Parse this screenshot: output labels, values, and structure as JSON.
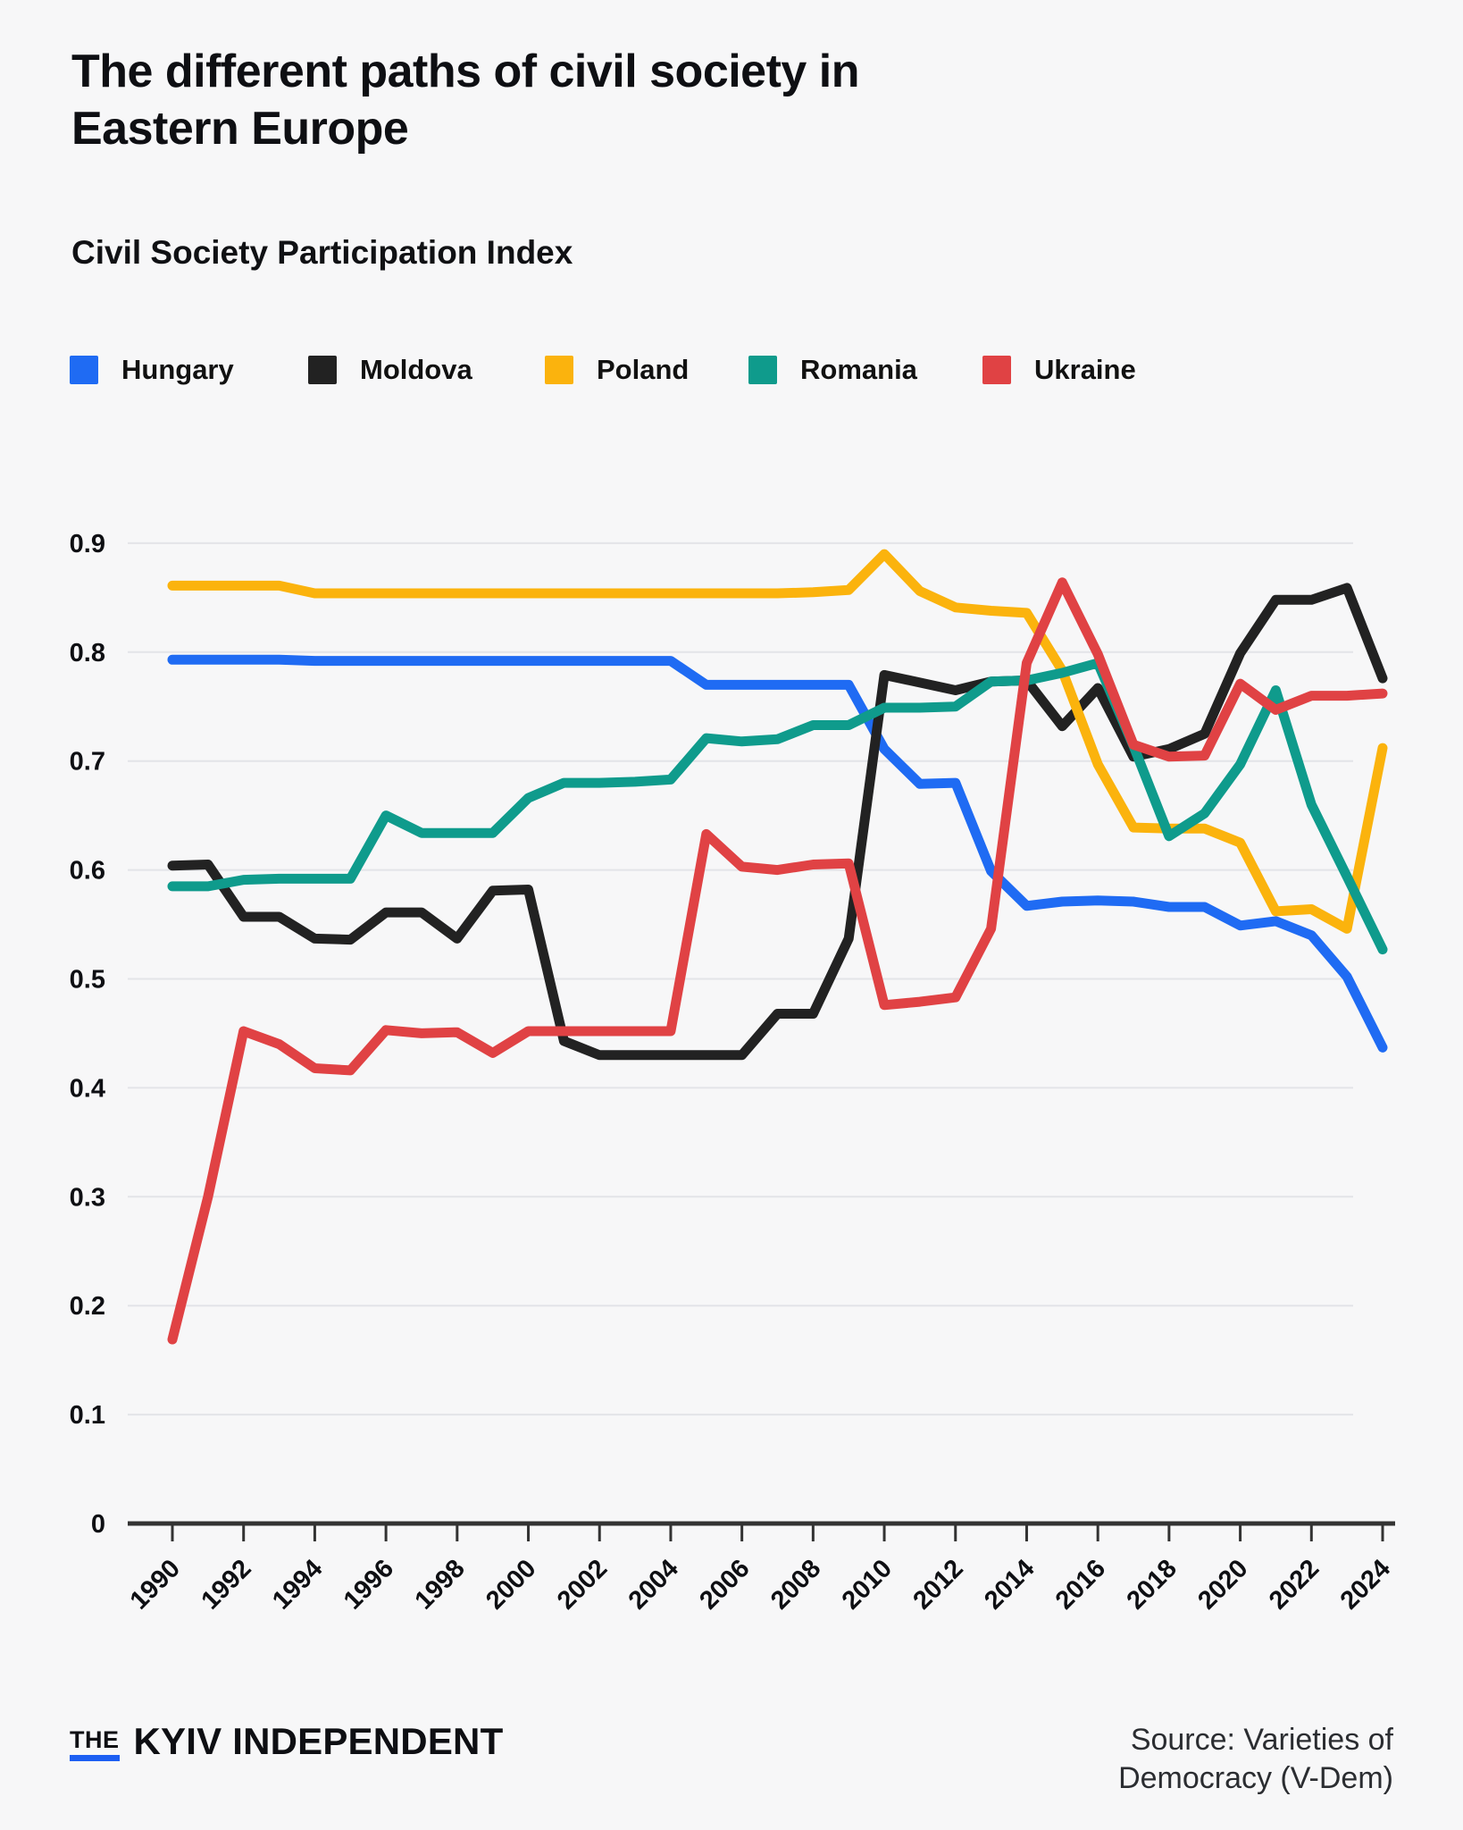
{
  "chart_data": {
    "type": "line",
    "title": "The different paths of civil society in Eastern Europe",
    "subtitle": "Civil Society Participation Index",
    "x": [
      1990,
      1991,
      1992,
      1993,
      1994,
      1995,
      1996,
      1997,
      1998,
      1999,
      2000,
      2001,
      2002,
      2003,
      2004,
      2005,
      2006,
      2007,
      2008,
      2009,
      2010,
      2011,
      2012,
      2013,
      2014,
      2015,
      2016,
      2017,
      2018,
      2019,
      2020,
      2021,
      2022,
      2023,
      2024
    ],
    "xtick_labels": [
      "1990",
      "1992",
      "1994",
      "1996",
      "1998",
      "2000",
      "2002",
      "2004",
      "2006",
      "2008",
      "2010",
      "2012",
      "2014",
      "2016",
      "2018",
      "2020",
      "2022",
      "2024"
    ],
    "ylim": [
      0,
      0.9
    ],
    "yticks": [
      0,
      0.1,
      0.2,
      0.3,
      0.4,
      0.5,
      0.6,
      0.7,
      0.8,
      0.9
    ],
    "ytick_labels": [
      "0",
      "0.1",
      "0.2",
      "0.3",
      "0.4",
      "0.5",
      "0.6",
      "0.7",
      "0.8",
      "0.9"
    ],
    "grid": "horizontal",
    "legend_position": "top",
    "series": [
      {
        "name": "Hungary",
        "color": "#1f6bf3",
        "values": [
          0.793,
          0.793,
          0.793,
          0.793,
          0.792,
          0.792,
          0.792,
          0.792,
          0.792,
          0.792,
          0.792,
          0.792,
          0.792,
          0.792,
          0.792,
          0.77,
          0.77,
          0.77,
          0.77,
          0.77,
          0.711,
          0.679,
          0.68,
          0.599,
          0.567,
          0.571,
          0.572,
          0.571,
          0.566,
          0.566,
          0.549,
          0.553,
          0.54,
          0.502,
          0.437
        ]
      },
      {
        "name": "Moldova",
        "color": "#222222",
        "values": [
          0.604,
          0.605,
          0.557,
          0.557,
          0.537,
          0.536,
          0.561,
          0.561,
          0.537,
          0.581,
          0.582,
          0.443,
          0.43,
          0.43,
          0.43,
          0.43,
          0.43,
          0.468,
          0.468,
          0.537,
          0.779,
          0.772,
          0.765,
          0.773,
          0.774,
          0.732,
          0.767,
          0.704,
          0.711,
          0.725,
          0.799,
          0.848,
          0.848,
          0.859,
          0.776
        ]
      },
      {
        "name": "Poland",
        "color": "#fbb30d",
        "values": [
          0.861,
          0.861,
          0.861,
          0.861,
          0.854,
          0.854,
          0.854,
          0.854,
          0.854,
          0.854,
          0.854,
          0.854,
          0.854,
          0.854,
          0.854,
          0.854,
          0.854,
          0.854,
          0.855,
          0.857,
          0.89,
          0.856,
          0.841,
          0.838,
          0.836,
          0.783,
          0.697,
          0.639,
          0.638,
          0.638,
          0.625,
          0.562,
          0.564,
          0.546,
          0.712
        ]
      },
      {
        "name": "Romania",
        "color": "#0f9b8c",
        "values": [
          0.585,
          0.585,
          0.591,
          0.592,
          0.592,
          0.592,
          0.65,
          0.634,
          0.634,
          0.634,
          0.666,
          0.68,
          0.68,
          0.681,
          0.683,
          0.721,
          0.718,
          0.72,
          0.733,
          0.733,
          0.749,
          0.749,
          0.75,
          0.773,
          0.774,
          0.781,
          0.79,
          0.714,
          0.631,
          0.652,
          0.697,
          0.765,
          0.66,
          0.594,
          0.527
        ]
      },
      {
        "name": "Ukraine",
        "color": "#e04244",
        "values": [
          0.169,
          0.3,
          0.452,
          0.44,
          0.418,
          0.416,
          0.453,
          0.45,
          0.451,
          0.432,
          0.452,
          0.452,
          0.452,
          0.452,
          0.452,
          0.633,
          0.603,
          0.6,
          0.605,
          0.606,
          0.476,
          0.479,
          0.483,
          0.546,
          0.79,
          0.864,
          0.798,
          0.715,
          0.704,
          0.705,
          0.771,
          0.747,
          0.76,
          0.76,
          0.762
        ]
      }
    ]
  },
  "footer": {
    "brand_prefix": "THE",
    "brand_name": "KYIV INDEPENDENT",
    "source": "Source: Varieties of Democracy (V-Dem)"
  },
  "style": {
    "background": "#f7f7f8",
    "grid_color": "#e3e4e8",
    "axis_color": "#333333",
    "text_color": "#0e0f13"
  }
}
